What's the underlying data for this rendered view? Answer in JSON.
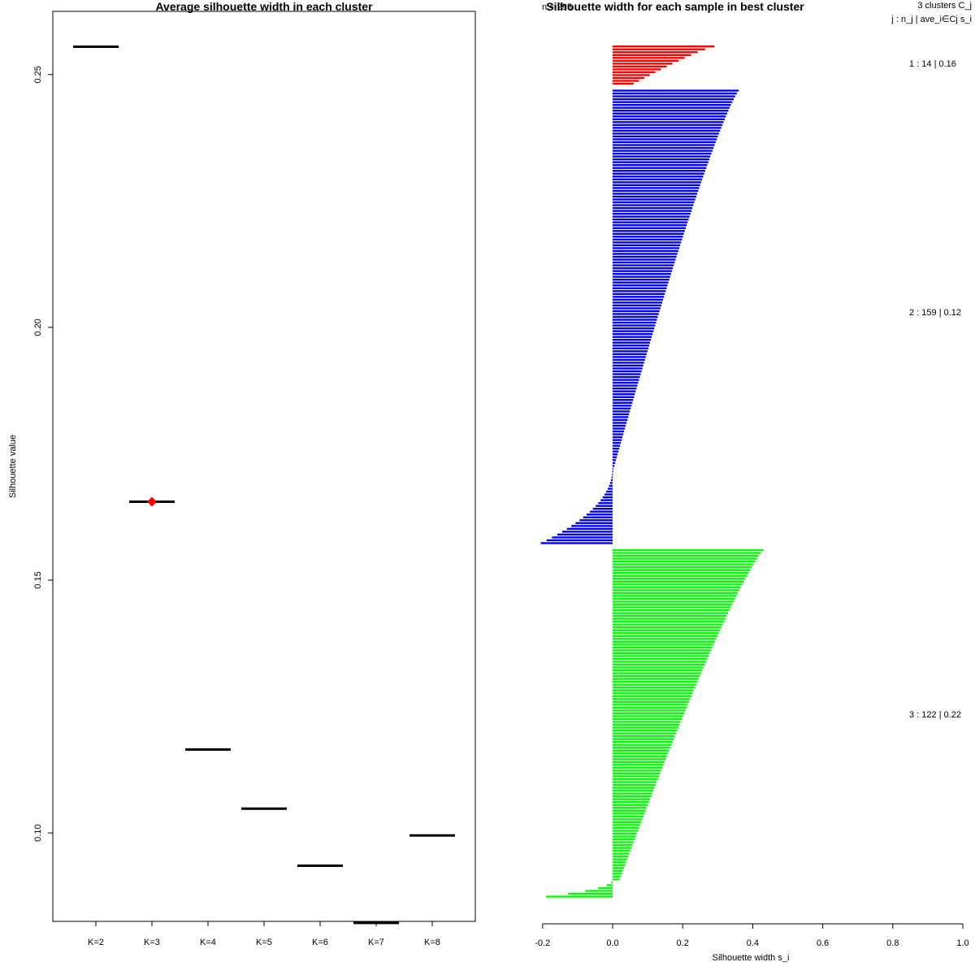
{
  "chart_data": [
    {
      "type": "scatter",
      "title": "Average silhouette width in each cluster",
      "xlabel": "",
      "ylabel": "Silhouette value",
      "ylim": [
        0.0825,
        0.2625
      ],
      "yticks": [
        0.1,
        0.15,
        0.2,
        0.25
      ],
      "ytick_labels": [
        "0.10",
        "0.15",
        "0.20",
        "0.25"
      ],
      "categories": [
        "K=2",
        "K=3",
        "K=4",
        "K=5",
        "K=6",
        "K=7",
        "K=8"
      ],
      "values": [
        0.2555,
        0.1655,
        0.1165,
        0.1048,
        0.0935,
        0.0822,
        0.0995
      ],
      "best": "K=3",
      "best_color": "#ff0000",
      "line_color": "#000000"
    },
    {
      "type": "bar",
      "title": "Silhouette width for each sample in best cluster",
      "subtitle": "n = 295",
      "xlabel": "Silhouette width s_i",
      "xlim": [
        -0.2,
        1.0
      ],
      "xticks": [
        -0.2,
        0.0,
        0.2,
        0.4,
        0.6,
        0.8,
        1.0
      ],
      "xtick_labels": [
        "-0.2",
        "0.0",
        "0.2",
        "0.4",
        "0.6",
        "0.8",
        "1.0"
      ],
      "legend_title": "3  clusters  C_j",
      "legend_header": "j :  n_j | ave_i∈Cj  s_i",
      "clusters": [
        {
          "j": 1,
          "n": 14,
          "label": "1 :   14  |  0.16",
          "color": "#ff0000",
          "max": 0.29,
          "min": 0.06,
          "neg_count": 0,
          "neg_min": 0
        },
        {
          "j": 2,
          "n": 159,
          "label": "2 :  159  |  0.12",
          "color": "#0000ff",
          "max": 0.36,
          "min": 0.005,
          "neg_count": 27,
          "neg_min": -0.205
        },
        {
          "j": 3,
          "n": 122,
          "label": "3 :  122  |  0.22",
          "color": "#00ff00",
          "max": 0.43,
          "min": 0.02,
          "neg_count": 6,
          "neg_min": -0.19
        }
      ]
    }
  ]
}
